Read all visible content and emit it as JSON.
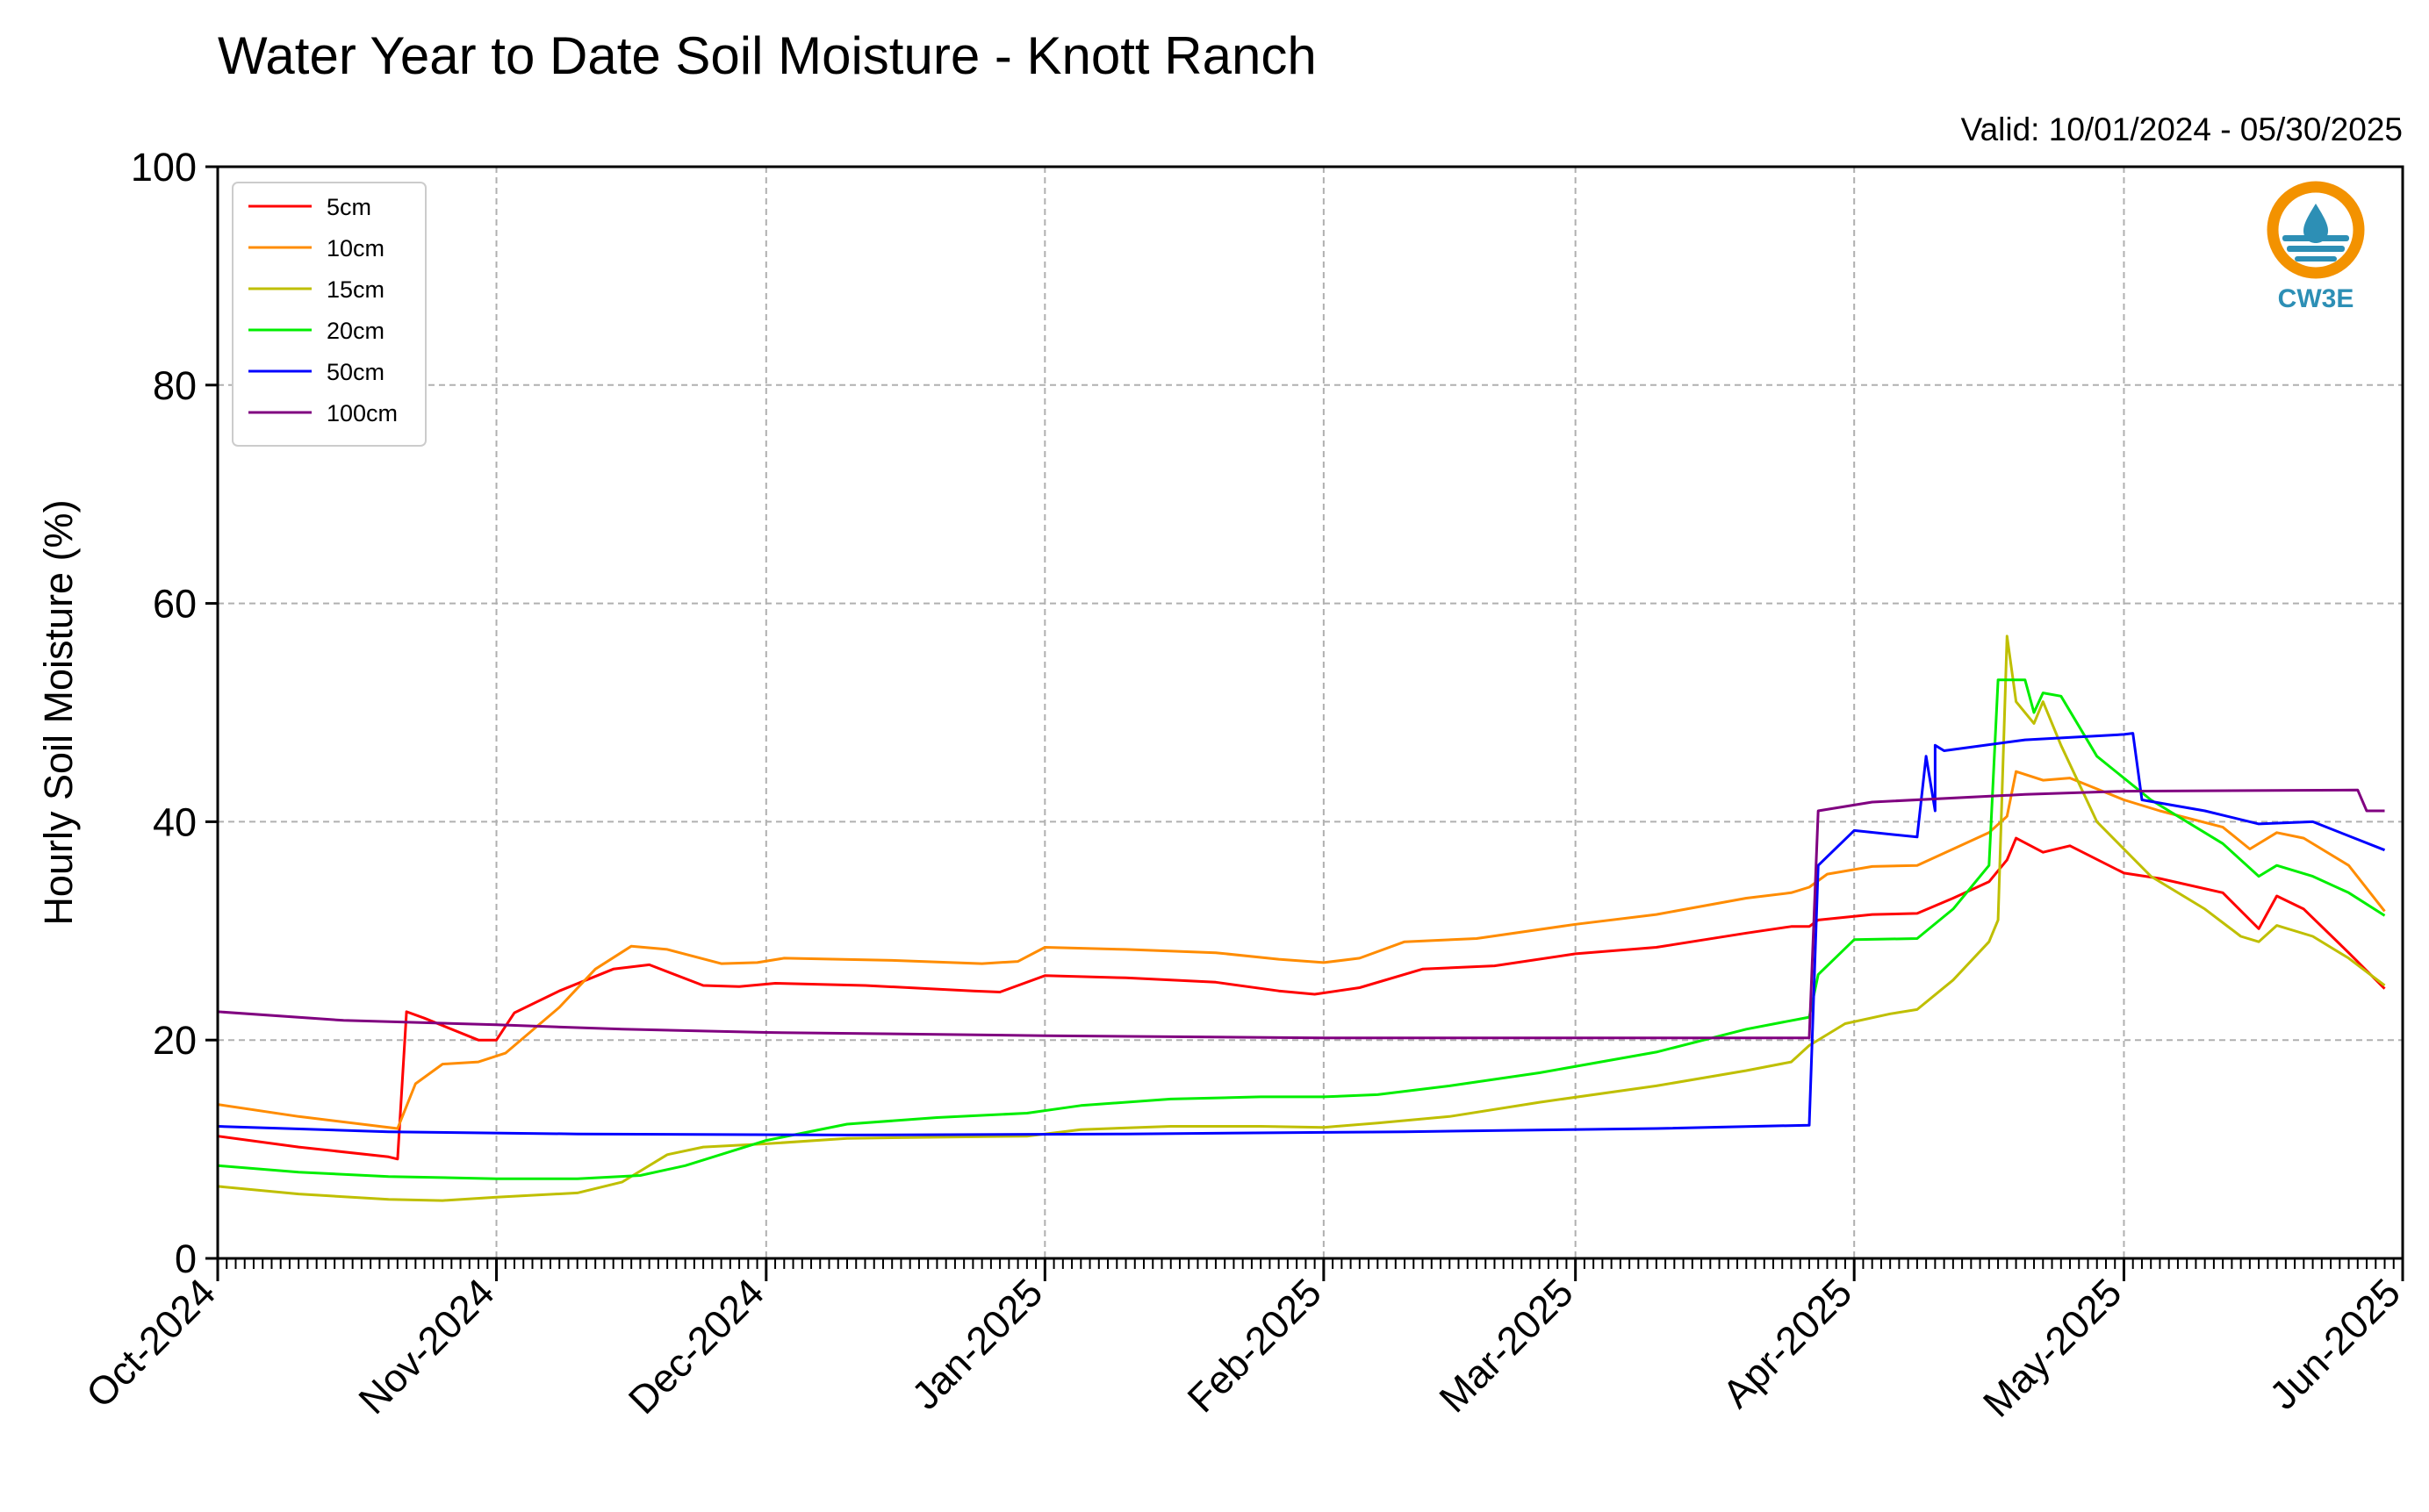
{
  "chart_data": {
    "type": "line",
    "title": "Water Year to Date Soil Moisture - Knott Ranch",
    "subtitle": "Valid: 10/01/2024 - 05/30/2025",
    "ylabel": "Hourly Soil Moisture (%)",
    "xlabel": "",
    "ylim": [
      0,
      100
    ],
    "xlim": [
      "2024-10-01",
      "2025-06-01"
    ],
    "yticks": [
      "0",
      "20",
      "40",
      "60",
      "80",
      "100"
    ],
    "xticks": [
      {
        "date": "2024-10-01",
        "label": "Oct-2024"
      },
      {
        "date": "2024-11-01",
        "label": "Nov-2024"
      },
      {
        "date": "2024-12-01",
        "label": "Dec-2024"
      },
      {
        "date": "2025-01-01",
        "label": "Jan-2025"
      },
      {
        "date": "2025-02-01",
        "label": "Feb-2025"
      },
      {
        "date": "2025-03-01",
        "label": "Mar-2025"
      },
      {
        "date": "2025-04-01",
        "label": "Apr-2025"
      },
      {
        "date": "2025-05-01",
        "label": "May-2025"
      },
      {
        "date": "2025-06-01",
        "label": "Jun-2025"
      }
    ],
    "grid": true,
    "legend_position": "top-left",
    "series": [
      {
        "name": "5cm",
        "color": "#ff0000",
        "points": [
          [
            "2024-10-01",
            11.2
          ],
          [
            "2024-10-10",
            10.2
          ],
          [
            "2024-10-20",
            9.3
          ],
          [
            "2024-10:21",
            9.1
          ],
          [
            "2024-10-22",
            22.6
          ],
          [
            "2024-10-24",
            22.0
          ],
          [
            "2024-10-30",
            20.0
          ],
          [
            "2024-11-01",
            20.0
          ],
          [
            "2024-11-03",
            22.5
          ],
          [
            "2024-11-08",
            24.5
          ],
          [
            "2024-11-14",
            26.5
          ],
          [
            "2024-11-18",
            26.9
          ],
          [
            "2024-11-24",
            25.0
          ],
          [
            "2024-11-28",
            24.9
          ],
          [
            "2024-12-02",
            25.2
          ],
          [
            "2024-12-12",
            25.0
          ],
          [
            "2024-12-24",
            24.5
          ],
          [
            "2024-12-27",
            24.4
          ],
          [
            "2025-01-01",
            25.9
          ],
          [
            "2025-01-10",
            25.7
          ],
          [
            "2025-01-20",
            25.3
          ],
          [
            "2025-01-27",
            24.5
          ],
          [
            "2025-01-31",
            24.2
          ],
          [
            "2025-02-05",
            24.8
          ],
          [
            "2025-02-12",
            26.5
          ],
          [
            "2025-02-20",
            26.8
          ],
          [
            "2025-03-01",
            27.9
          ],
          [
            "2025-03-10",
            28.5
          ],
          [
            "2025-03-20",
            29.8
          ],
          [
            "2025-03-25",
            30.4
          ],
          [
            "2025-03-27",
            30.4
          ],
          [
            "2025-03-28",
            31.0
          ],
          [
            "2025-04-03",
            31.5
          ],
          [
            "2025-04-08",
            31.6
          ],
          [
            "2025-04-12",
            33.0
          ],
          [
            "2025-04-16",
            34.5
          ],
          [
            "2025-04-18",
            36.5
          ],
          [
            "2025-04-19",
            38.5
          ],
          [
            "2025-04-22",
            37.2
          ],
          [
            "2025-04-25",
            37.8
          ],
          [
            "2025-05-01",
            35.3
          ],
          [
            "2025-05-05",
            34.8
          ],
          [
            "2025-05-12",
            33.5
          ],
          [
            "2025-05-16",
            30.2
          ],
          [
            "2025-05-18",
            33.2
          ],
          [
            "2025-05-21",
            32.0
          ],
          [
            "2025-05-26",
            28.0
          ],
          [
            "2025-05-30",
            24.7
          ]
        ]
      },
      {
        "name": "10cm",
        "color": "#ff8c00",
        "points": [
          [
            "2024-10-01",
            14.1
          ],
          [
            "2024-10-10",
            13.0
          ],
          [
            "2024-10-20",
            12.0
          ],
          [
            "2024-10-21",
            11.9
          ],
          [
            "2024-10-23",
            16.0
          ],
          [
            "2024-10-26",
            17.8
          ],
          [
            "2024-10-30",
            18.0
          ],
          [
            "2024-11-02",
            18.8
          ],
          [
            "2024-11-08",
            23.0
          ],
          [
            "2024-11-12",
            26.5
          ],
          [
            "2024-11-16",
            28.6
          ],
          [
            "2024-11-20",
            28.3
          ],
          [
            "2024-11-26",
            27.0
          ],
          [
            "2024-11-30",
            27.1
          ],
          [
            "2024-12-03",
            27.5
          ],
          [
            "2024-12-15",
            27.3
          ],
          [
            "2024-12-25",
            27.0
          ],
          [
            "2024-12-29",
            27.2
          ],
          [
            "2025-01-01",
            28.5
          ],
          [
            "2025-01-10",
            28.3
          ],
          [
            "2025-01-20",
            28.0
          ],
          [
            "2025-01-27",
            27.4
          ],
          [
            "2025-02-01",
            27.1
          ],
          [
            "2025-02-05",
            27.5
          ],
          [
            "2025-02-10",
            29.0
          ],
          [
            "2025-02-18",
            29.3
          ],
          [
            "2025-03-01",
            30.6
          ],
          [
            "2025-03-10",
            31.5
          ],
          [
            "2025-03-20",
            33.0
          ],
          [
            "2025-03-25",
            33.5
          ],
          [
            "2025-03-27",
            34.0
          ],
          [
            "2025-03-29",
            35.2
          ],
          [
            "2025-04-03",
            35.9
          ],
          [
            "2025-04-08",
            36.0
          ],
          [
            "2025-04-12",
            37.5
          ],
          [
            "2025-04-16",
            39.0
          ],
          [
            "2025-04-18",
            40.5
          ],
          [
            "2025-04-19",
            44.6
          ],
          [
            "2025-04-22",
            43.8
          ],
          [
            "2025-04-25",
            44.0
          ],
          [
            "2025-05-01",
            42.0
          ],
          [
            "2025-05-05",
            41.0
          ],
          [
            "2025-05-12",
            39.5
          ],
          [
            "2025-05-15",
            37.5
          ],
          [
            "2025-05-18",
            39.0
          ],
          [
            "2025-05-21",
            38.5
          ],
          [
            "2025-05-26",
            36.0
          ],
          [
            "2025-05-30",
            31.8
          ]
        ]
      },
      {
        "name": "15cm",
        "color": "#bfbf00",
        "points": [
          [
            "2024-10-01",
            6.6
          ],
          [
            "2024-10-10",
            5.9
          ],
          [
            "2024-10-20",
            5.4
          ],
          [
            "2024-10-26",
            5.3
          ],
          [
            "2024-11-01",
            5.6
          ],
          [
            "2024-11-10",
            6.0
          ],
          [
            "2024-11-15",
            7.0
          ],
          [
            "2024-11-20",
            9.5
          ],
          [
            "2024-11-24",
            10.2
          ],
          [
            "2024-12-01",
            10.5
          ],
          [
            "2024-12-10",
            11.0
          ],
          [
            "2024-12-20",
            11.1
          ],
          [
            "2024-12-30",
            11.2
          ],
          [
            "2025-01-05",
            11.8
          ],
          [
            "2025-01-15",
            12.1
          ],
          [
            "2025-01-25",
            12.1
          ],
          [
            "2025-02-01",
            12.0
          ],
          [
            "2025-02-07",
            12.4
          ],
          [
            "2025-02-15",
            13.0
          ],
          [
            "2025-02-25",
            14.3
          ],
          [
            "2025-03-10",
            15.8
          ],
          [
            "2025-03-20",
            17.2
          ],
          [
            "2025-03-25",
            18.0
          ],
          [
            "2025-03-27",
            19.5
          ],
          [
            "2025-03-31",
            21.5
          ],
          [
            "2025-04-05",
            22.4
          ],
          [
            "2025-04-08",
            22.8
          ],
          [
            "2025-04-12",
            25.5
          ],
          [
            "2025-04-16",
            29.0
          ],
          [
            "2025-04-17",
            31.0
          ],
          [
            "2025-04-18",
            57.0
          ],
          [
            "2025-04-19",
            51.0
          ],
          [
            "2025-04-21",
            49.0
          ],
          [
            "2025-04-22",
            51.0
          ],
          [
            "2025-04-24",
            47.0
          ],
          [
            "2025-04-28",
            40.0
          ],
          [
            "2025-05-04",
            35.0
          ],
          [
            "2025-05-10",
            32.0
          ],
          [
            "2025-05-14",
            29.5
          ],
          [
            "2025-05-16",
            29.0
          ],
          [
            "2025-05-18",
            30.5
          ],
          [
            "2025-05-22",
            29.5
          ],
          [
            "2025-05-26",
            27.5
          ],
          [
            "2025-05-30",
            25.0
          ]
        ]
      },
      {
        "name": "20cm",
        "color": "#00ee00",
        "points": [
          [
            "2024-10-01",
            8.5
          ],
          [
            "2024-10-10",
            7.9
          ],
          [
            "2024-10-20",
            7.5
          ],
          [
            "2024-11-01",
            7.3
          ],
          [
            "2024-11-10",
            7.3
          ],
          [
            "2024-11-17",
            7.6
          ],
          [
            "2024-11-22",
            8.5
          ],
          [
            "2024-12-01",
            10.8
          ],
          [
            "2024-12-10",
            12.3
          ],
          [
            "2024-12-20",
            12.9
          ],
          [
            "2024-12-30",
            13.3
          ],
          [
            "2025-01-05",
            14.0
          ],
          [
            "2025-01-15",
            14.6
          ],
          [
            "2025-01-25",
            14.8
          ],
          [
            "2025-02-01",
            14.8
          ],
          [
            "2025-02-07",
            15.0
          ],
          [
            "2025-02-15",
            15.8
          ],
          [
            "2025-02-25",
            17.0
          ],
          [
            "2025-03-10",
            18.9
          ],
          [
            "2025-03-20",
            21.0
          ],
          [
            "2025-03-27",
            22.1
          ],
          [
            "2025-03-28",
            26.0
          ],
          [
            "2025-04-01",
            29.2
          ],
          [
            "2025-04-08",
            29.3
          ],
          [
            "2025-04-12",
            32.0
          ],
          [
            "2025-04-16",
            36.0
          ],
          [
            "2025-04-17",
            53.0
          ],
          [
            "2025-04-20",
            53.0
          ],
          [
            "2025-04-21",
            50.0
          ],
          [
            "2025-04-22",
            51.8
          ],
          [
            "2025-04-24",
            51.5
          ],
          [
            "2025-04-28",
            46.0
          ],
          [
            "2025-05-04",
            42.0
          ],
          [
            "2025-05-12",
            38.0
          ],
          [
            "2025-05-16",
            35.0
          ],
          [
            "2025-05-18",
            36.0
          ],
          [
            "2025-05-22",
            35.0
          ],
          [
            "2025-05-26",
            33.5
          ],
          [
            "2025-05-30",
            31.4
          ]
        ]
      },
      {
        "name": "50cm",
        "color": "#0000ff",
        "points": [
          [
            "2024-10-01",
            12.1
          ],
          [
            "2024-10-20",
            11.6
          ],
          [
            "2024-11-10",
            11.4
          ],
          [
            "2024-12-10",
            11.3
          ],
          [
            "2025-01-10",
            11.4
          ],
          [
            "2025-02-10",
            11.6
          ],
          [
            "2025-03-10",
            11.9
          ],
          [
            "2025-03-27",
            12.2
          ],
          [
            "2025-03-28",
            36.0
          ],
          [
            "2025-04-01",
            39.2
          ],
          [
            "2025-04-08",
            38.6
          ],
          [
            "2025-04-09",
            46.0
          ],
          [
            "2025-04-10",
            41.0
          ],
          [
            "2025-04-10",
            47.0
          ],
          [
            "2025-04-11",
            46.5
          ],
          [
            "2025-04-20",
            47.5
          ],
          [
            "2025-05-01",
            48.0
          ],
          [
            "2025-05-02",
            48.1
          ],
          [
            "2025-05-03",
            42.0
          ],
          [
            "2025-05-10",
            41.0
          ],
          [
            "2025-05-16",
            39.8
          ],
          [
            "2025-05-22",
            40.0
          ],
          [
            "2025-05-30",
            37.4
          ]
        ]
      },
      {
        "name": "100cm",
        "color": "#800080",
        "points": [
          [
            "2024-10-01",
            22.6
          ],
          [
            "2024-10-15",
            21.8
          ],
          [
            "2024-11-01",
            21.4
          ],
          [
            "2024-11-15",
            21.0
          ],
          [
            "2024-12-01",
            20.7
          ],
          [
            "2025-01-01",
            20.4
          ],
          [
            "2025-02-01",
            20.2
          ],
          [
            "2025-03-01",
            20.2
          ],
          [
            "2025-03-27",
            20.2
          ],
          [
            "2025-03-28",
            41.0
          ],
          [
            "2025-04-03",
            41.8
          ],
          [
            "2025-04-20",
            42.5
          ],
          [
            "2025-05-01",
            42.8
          ],
          [
            "2025-05-27",
            42.9
          ],
          [
            "2025-05-28",
            41.0
          ],
          [
            "2025-05-30",
            41.0
          ]
        ]
      }
    ],
    "logo_text": "CW3E",
    "logo_colors": {
      "ring": "#f39200",
      "wave": "#2d8fb5"
    }
  }
}
